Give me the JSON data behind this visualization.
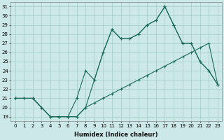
{
  "xlabel": "Humidex (Indice chaleur)",
  "background_color": "#cde8e8",
  "grid_color": "#aacece",
  "line_color": "#1a6b5a",
  "x_values": [
    0,
    1,
    2,
    3,
    4,
    5,
    6,
    7,
    8,
    9,
    10,
    11,
    12,
    13,
    14,
    15,
    16,
    17,
    18,
    19,
    20,
    21,
    22,
    23
  ],
  "line1": [
    21,
    21,
    21,
    20,
    19,
    19,
    19,
    21,
    24,
    23,
    26,
    28.5,
    27.5,
    27.5,
    28,
    29,
    29.5,
    31,
    29,
    27,
    27,
    25,
    24,
    22.5
  ],
  "line2": [
    21,
    21,
    21,
    20,
    19,
    19,
    19,
    19,
    20,
    23,
    26,
    28.5,
    27.5,
    27.5,
    28,
    29,
    29.5,
    31,
    29,
    27,
    27,
    25,
    24,
    22.5
  ],
  "line3": [
    21,
    21,
    21,
    20,
    19,
    19,
    19,
    19,
    20,
    20.5,
    21,
    21.5,
    22,
    22.5,
    23,
    23.5,
    24,
    24.5,
    25,
    25.5,
    26,
    26.5,
    27,
    22.5
  ],
  "ylim_min": 18.5,
  "ylim_max": 31.5,
  "xlim_min": -0.5,
  "xlim_max": 23.5,
  "yticks": [
    19,
    20,
    21,
    22,
    23,
    24,
    25,
    26,
    27,
    28,
    29,
    30,
    31
  ],
  "xticks": [
    0,
    1,
    2,
    3,
    4,
    5,
    6,
    7,
    8,
    9,
    10,
    11,
    12,
    13,
    14,
    15,
    16,
    17,
    18,
    19,
    20,
    21,
    22,
    23
  ],
  "xlabel_fontsize": 6.0,
  "tick_fontsize": 5.0,
  "linewidth": 0.8,
  "markersize": 3.0
}
